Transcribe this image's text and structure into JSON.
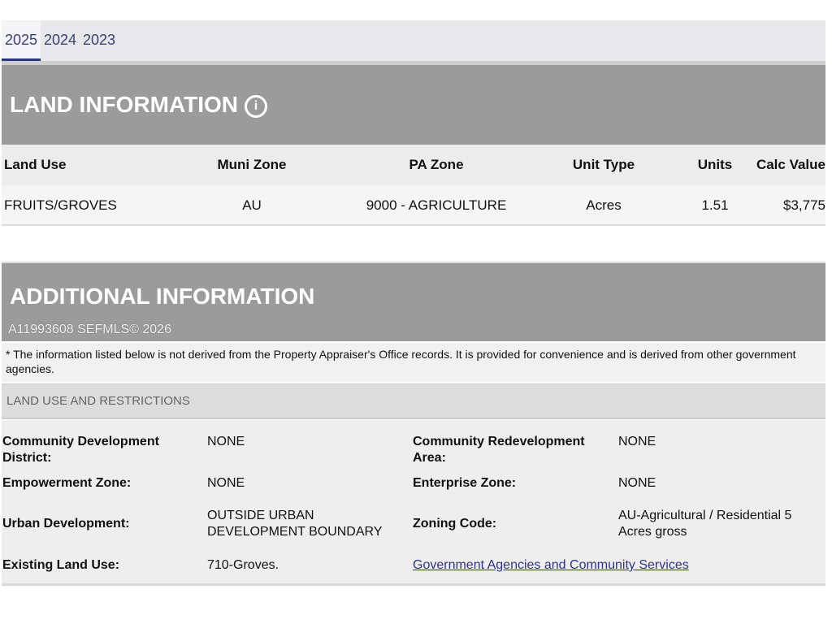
{
  "tabs": [
    "2025",
    "2024",
    "2023"
  ],
  "active_tab": "2025",
  "land_information": {
    "title": "LAND INFORMATION",
    "info_icon": "info-circle-icon",
    "columns": [
      "Land Use",
      "Muni Zone",
      "PA Zone",
      "Unit Type",
      "Units",
      "Calc Value"
    ],
    "rows": [
      [
        "FRUITS/GROVES",
        "AU",
        "9000 - AGRICULTURE",
        "Acres",
        "1.51",
        "$3,775"
      ]
    ]
  },
  "additional_information": {
    "title": "ADDITIONAL INFORMATION",
    "note": "* The information listed below is not derived from the Property Appraiser's Office records. It is provided for convenience and is derived from other government agencies.",
    "section": "LAND USE AND RESTRICTIONS",
    "fields": [
      {
        "label": "Community Development District:",
        "value": "NONE"
      },
      {
        "label": "Community Redevelopment Area:",
        "value": "NONE"
      },
      {
        "label": "Empowerment Zone:",
        "value": "NONE"
      },
      {
        "label": "Enterprise Zone:",
        "value": "NONE"
      },
      {
        "label": "Urban Development:",
        "value": "OUTSIDE URBAN DEVELOPMENT BOUNDARY"
      },
      {
        "label": "Zoning Code:",
        "value": "AU-Agricultural / Residential 5 Acres gross"
      },
      {
        "label": "Existing Land Use:",
        "value": "710-Groves."
      }
    ],
    "link": "Government Agencies and Community Services"
  },
  "watermark": "A11993608 SEFMLS© 2026",
  "colors": {
    "header_gray": "#9b9b9b",
    "tab_accent": "#2d3480",
    "link": "#2d3480"
  }
}
